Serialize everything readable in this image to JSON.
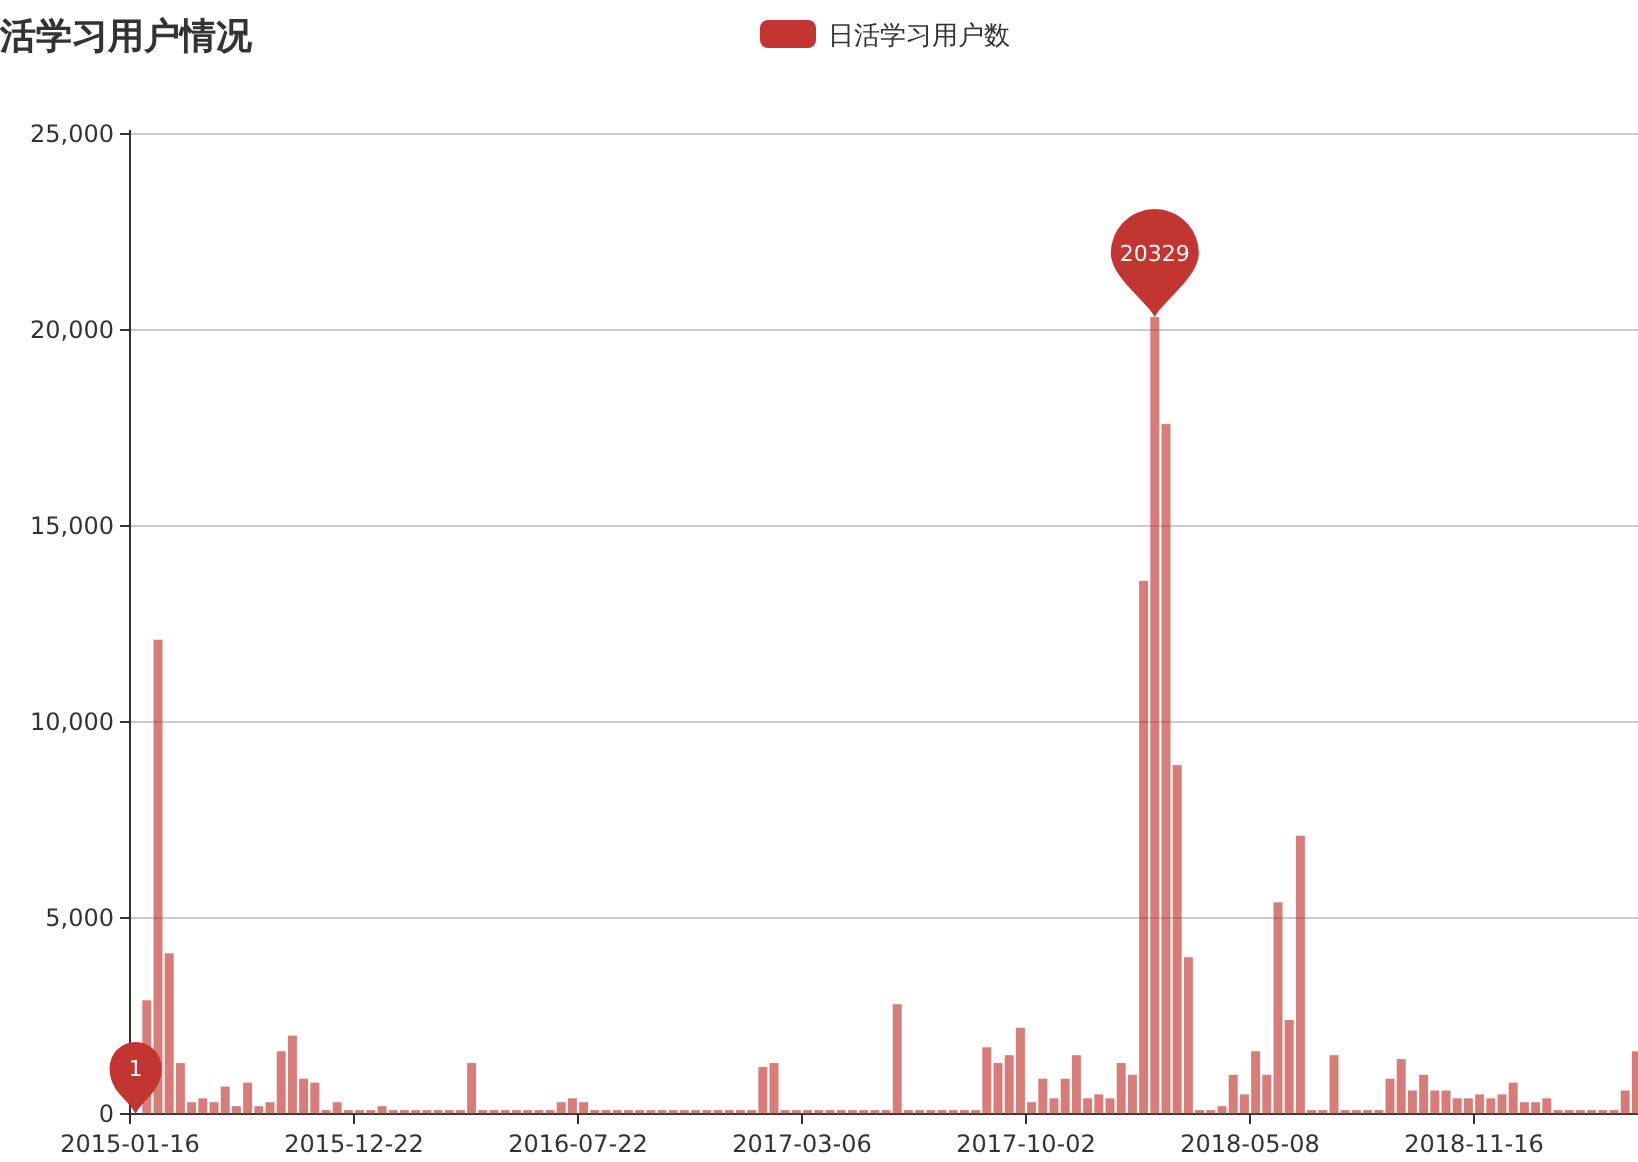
{
  "chart_data": {
    "type": "bar",
    "title": "活学习用户情况",
    "legend": "top",
    "categories": [
      "2015-01-16",
      null,
      null,
      null,
      null,
      null,
      null,
      null,
      null,
      null,
      null,
      null,
      null,
      null,
      null,
      null,
      null,
      null,
      null,
      null,
      "2015-12-22",
      null,
      null,
      null,
      null,
      null,
      null,
      null,
      null,
      null,
      null,
      null,
      null,
      null,
      null,
      null,
      null,
      null,
      null,
      null,
      "2016-07-22",
      null,
      null,
      null,
      null,
      null,
      null,
      null,
      null,
      null,
      null,
      null,
      null,
      null,
      null,
      null,
      null,
      null,
      null,
      null,
      "2017-03-06",
      null,
      null,
      null,
      null,
      null,
      null,
      null,
      null,
      null,
      null,
      null,
      null,
      null,
      null,
      null,
      null,
      null,
      null,
      null,
      "2017-10-02",
      null,
      null,
      null,
      null,
      null,
      null,
      null,
      null,
      null,
      null,
      null,
      null,
      null,
      null,
      null,
      null,
      null,
      null,
      null,
      "2018-05-08",
      null,
      null,
      null,
      null,
      null,
      null,
      null,
      null,
      null,
      null,
      null,
      null,
      null,
      null,
      null,
      null,
      null,
      null,
      null,
      "2018-11-16",
      null,
      null,
      null,
      null,
      null,
      null,
      null,
      null,
      null,
      null,
      null,
      null,
      null,
      null
    ],
    "series": [
      {
        "name": "日活学习用户数",
        "color": "#c23531",
        "values": [
          1,
          2900,
          12100,
          4100,
          1300,
          300,
          400,
          300,
          700,
          200,
          800,
          200,
          300,
          1600,
          2000,
          900,
          800,
          100,
          300,
          100,
          100,
          100,
          200,
          100,
          100,
          100,
          100,
          100,
          100,
          100,
          1300,
          100,
          100,
          100,
          100,
          100,
          100,
          100,
          300,
          400,
          300,
          100,
          100,
          100,
          100,
          100,
          100,
          100,
          100,
          100,
          100,
          100,
          100,
          100,
          100,
          100,
          1200,
          1300,
          100,
          100,
          100,
          100,
          100,
          100,
          100,
          100,
          100,
          100,
          2800,
          100,
          100,
          100,
          100,
          100,
          100,
          100,
          1700,
          1300,
          1500,
          2200,
          300,
          900,
          400,
          900,
          1500,
          400,
          500,
          400,
          1300,
          1000,
          13600,
          20329,
          17600,
          8900,
          4000,
          100,
          100,
          200,
          1000,
          500,
          1600,
          1000,
          5400,
          2400,
          7100,
          100,
          100,
          1500,
          100,
          100,
          100,
          100,
          900,
          1400,
          600,
          1000,
          600,
          600,
          400,
          400,
          500,
          400,
          500,
          800,
          300,
          300,
          400,
          100,
          100,
          100,
          100,
          100,
          100,
          600,
          1600
        ]
      }
    ],
    "ylim": [
      0,
      25000
    ],
    "yticks": [
      0,
      {
        "value": 5000,
        "label": "5,000"
      },
      {
        "value": 10000,
        "label": "10,000"
      },
      {
        "value": 15000,
        "label": "15,000"
      },
      {
        "value": 20000,
        "label": "20,000"
      },
      {
        "value": 25000,
        "label": "25,000"
      }
    ],
    "grid": "y",
    "annotations": [
      {
        "text": "20329",
        "y": 20329
      },
      {
        "text": "1",
        "x": "2015-01-16",
        "y": 1
      }
    ]
  }
}
